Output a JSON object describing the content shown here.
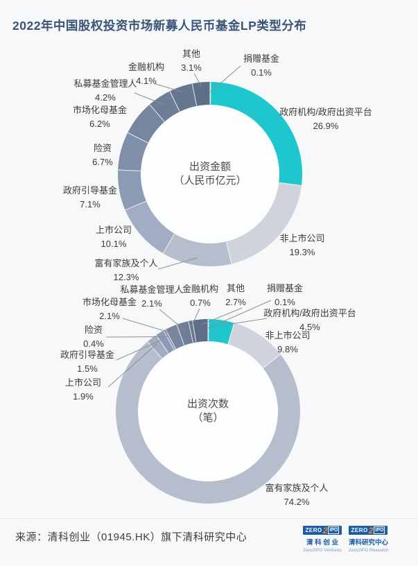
{
  "page": {
    "title": "2022年中国股权投资市场新募人民币基金LP类型分布",
    "background": "#F7F8F9",
    "title_color": "#3A5478"
  },
  "colors": {
    "accent_teal": "#1EC6CE",
    "leader_line": "#8E8E8E",
    "label_text": "#3B3B3B",
    "divider": "#E7E9EC",
    "badge_blue": "#1E5CA8",
    "badge_orange": "#F28B1E"
  },
  "chart_data": [
    {
      "type": "pie",
      "subtype": "donut",
      "name": "donut-amount",
      "center_label": [
        "出资金额",
        "（人民币亿元）"
      ],
      "unit": "%",
      "direction": "clockwise",
      "start_angle": "12-oclock",
      "center": [
        303,
        251
      ],
      "outer_radius": 133,
      "inner_radius": 100,
      "slices": [
        {
          "label": "捐赠基金",
          "value": 0.1,
          "color": "#8C9BB1",
          "label_pos": [
            377,
            95
          ],
          "line_from": [
            347,
            95
          ],
          "line_r": 118
        },
        {
          "label": "政府机构/政府出资平台",
          "value": 26.9,
          "color": "#1EC6CE",
          "label_pos": [
            470,
            172
          ]
        },
        {
          "label": "非上市公司",
          "value": 19.3,
          "color": "#CFD4DC",
          "label_pos": [
            436,
            354
          ]
        },
        {
          "label": "富有家族及个人",
          "value": 12.3,
          "color": "#B6BECD",
          "label_pos": [
            182,
            390
          ],
          "line_from": [
            228,
            388
          ],
          "line_r": 122
        },
        {
          "label": "上市公司",
          "value": 10.1,
          "color": "#A0ADC2",
          "label_pos": [
            164,
            342
          ]
        },
        {
          "label": "政府引导基金",
          "value": 7.1,
          "color": "#8C9BB4",
          "label_pos": [
            130,
            285
          ]
        },
        {
          "label": "险资",
          "value": 6.7,
          "color": "#8090AA",
          "label_pos": [
            148,
            224
          ]
        },
        {
          "label": "市场化母基金",
          "value": 6.2,
          "color": "#76869F",
          "label_pos": [
            144,
            169
          ]
        },
        {
          "label": "私募基金管理人",
          "value": 4.2,
          "color": "#6E7E97",
          "label_pos": [
            152,
            131
          ],
          "line_from": [
            194,
            134
          ],
          "line_r": 120
        },
        {
          "label": "金融机构",
          "value": 4.1,
          "color": "#66768F",
          "label_pos": [
            211,
            107
          ],
          "line_from": [
            224,
            121
          ],
          "line_r": 125
        },
        {
          "label": "其他",
          "value": 3.1,
          "color": "#5D6E88",
          "label_pos": [
            276,
            88
          ],
          "line_from": [
            280,
            106
          ],
          "line_r": 127
        }
      ]
    },
    {
      "type": "pie",
      "subtype": "donut",
      "name": "donut-count",
      "center_label": [
        "出资次数",
        "（笔）"
      ],
      "unit": "%",
      "direction": "clockwise",
      "start_angle": "12-oclock",
      "center": [
        300,
        593
      ],
      "outer_radius": 133,
      "inner_radius": 101,
      "slices": [
        {
          "label": "捐赠基金",
          "value": 0.1,
          "color": "#8C9BB1",
          "label_pos": [
            411,
            426
          ],
          "line_from": [
            391,
            433
          ],
          "line_r": 120
        },
        {
          "label": "政府机构/政府出资平台",
          "value": 4.5,
          "color": "#1EC6CE",
          "label_pos": [
            447,
            462
          ],
          "line_from": [
            385,
            459
          ],
          "line_r": 125
        },
        {
          "label": "非上市公司",
          "value": 9.8,
          "color": "#CFD4DC",
          "label_pos": [
            415,
            494
          ]
        },
        {
          "label": "富有家族及个人",
          "value": 74.2,
          "color": "#B6BECD",
          "label_pos": [
            428,
            714
          ]
        },
        {
          "label": "上市公司",
          "value": 1.9,
          "color": "#A0ADC2",
          "label_pos": [
            120,
            562
          ],
          "line_from": [
            156,
            558
          ],
          "line_r": 122
        },
        {
          "label": "政府引导基金",
          "value": 1.5,
          "color": "#8C9BB4",
          "label_pos": [
            126,
            522
          ],
          "line_from": [
            168,
            519
          ],
          "line_r": 122
        },
        {
          "label": "险资",
          "value": 0.4,
          "color": "#8090AA",
          "label_pos": [
            135,
            486
          ],
          "line_from": [
            153,
            486
          ],
          "line_r": 122
        },
        {
          "label": "市场化母基金",
          "value": 2.1,
          "color": "#76869F",
          "label_pos": [
            158,
            446
          ],
          "line_from": [
            177,
            459
          ],
          "line_r": 122
        },
        {
          "label": "私募基金管理人",
          "value": 2.1,
          "color": "#6E7E97",
          "label_pos": [
            219,
            428
          ],
          "line_from": [
            230,
            446
          ],
          "line_r": 122
        },
        {
          "label": "金融机构",
          "value": 0.7,
          "color": "#66768F",
          "label_pos": [
            289,
            427
          ],
          "line_from": [
            288,
            445
          ],
          "line_r": 125
        },
        {
          "label": "其他",
          "value": 2.7,
          "color": "#5D6E88",
          "label_pos": [
            340,
            426
          ],
          "line_from": [
            349,
            444
          ],
          "line_r": 125
        }
      ]
    }
  ],
  "footer": {
    "source": "来源：清科创业（01945.HK）旗下清科研究中心",
    "logos": [
      {
        "zero": "ZERO",
        "two": "2",
        "ipo": "IPO",
        "cn": "清 科 创 业",
        "en": "Zero2IPO Ventures"
      },
      {
        "zero": "ZERO",
        "two": "2",
        "ipo": "IPO",
        "cn": "清科研究中心",
        "en": "Zero2IPO Research"
      }
    ]
  }
}
